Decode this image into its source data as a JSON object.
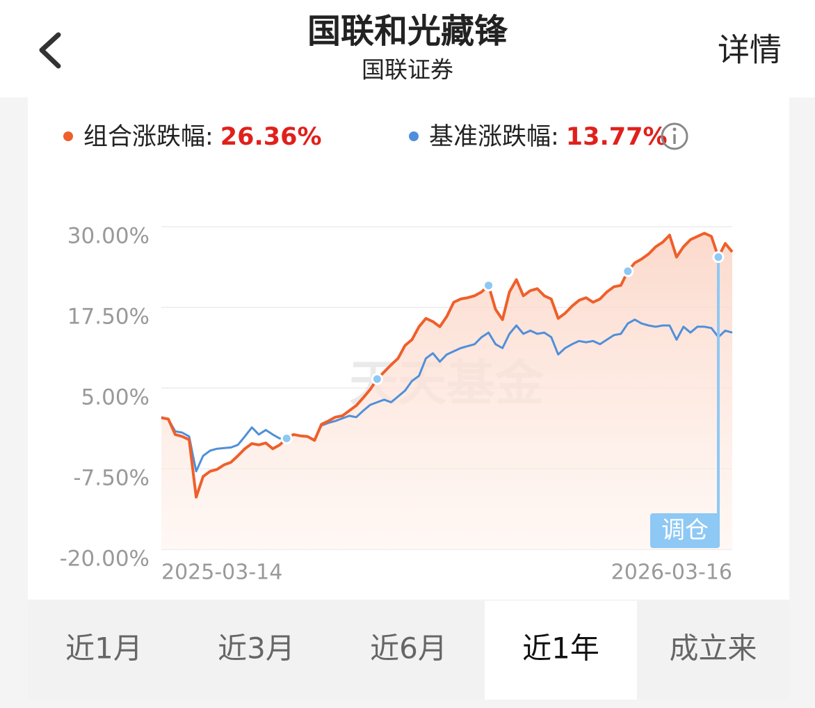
{
  "header": {
    "title": "国联和光藏锋",
    "subtitle": "国联证券",
    "action": "详情"
  },
  "summary": [
    {
      "label": "组合涨跌幅:",
      "value": "26.36%"
    },
    {
      "label": "基准涨跌幅:",
      "value": "13.77%"
    }
  ],
  "chart_data": {
    "type": "line",
    "categories": [
      "2025-03-14",
      null,
      null,
      null,
      null,
      null,
      null,
      null,
      null,
      null,
      null,
      null,
      null,
      null,
      null,
      null,
      null,
      null,
      null,
      null,
      null,
      null,
      null,
      null,
      null,
      null,
      null,
      null,
      null,
      null,
      null,
      null,
      null,
      null,
      null,
      null,
      null,
      null,
      null,
      null,
      null,
      null,
      null,
      null,
      null,
      null,
      null,
      null,
      null,
      null,
      null,
      null,
      null,
      null,
      null,
      null,
      null,
      null,
      null,
      null,
      null,
      null,
      null,
      null,
      null,
      null,
      null,
      null,
      null,
      null,
      null,
      null,
      null,
      null,
      null,
      null,
      null,
      null,
      null,
      null,
      null,
      null,
      "2026-03-16"
    ],
    "series": [
      {
        "color": "#ef5f2a",
        "area": true,
        "values": [
          0.4,
          0.2,
          -2.2,
          -2.5,
          -3.0,
          -11.9,
          -8.7,
          -7.9,
          -7.6,
          -6.9,
          -6.5,
          -5.5,
          -4.4,
          -3.6,
          -3.8,
          -3.5,
          -4.4,
          -3.8,
          -2.8,
          -2.2,
          -2.4,
          -2.5,
          -3.1,
          -0.6,
          -0.1,
          0.5,
          0.7,
          1.5,
          2.3,
          3.5,
          4.8,
          6.4,
          7.5,
          8.6,
          9.6,
          11.6,
          12.5,
          14.5,
          15.8,
          15.3,
          14.5,
          16.1,
          18.3,
          18.8,
          19.0,
          19.3,
          19.9,
          20.9,
          17.2,
          15.6,
          19.9,
          21.8,
          19.3,
          20.1,
          20.4,
          19.3,
          18.8,
          15.8,
          16.6,
          17.7,
          18.6,
          19.0,
          18.3,
          18.8,
          19.9,
          20.7,
          20.9,
          23.1,
          24.4,
          25.0,
          25.8,
          26.9,
          27.6,
          28.7,
          25.3,
          26.9,
          28.0,
          28.5,
          29.0,
          28.5,
          25.3,
          27.4,
          26.1
        ]
      },
      {
        "color": "#4f8fda",
        "values": [
          0.5,
          0.2,
          -1.7,
          -1.9,
          -2.5,
          -7.9,
          -5.5,
          -4.7,
          -4.4,
          -4.3,
          -4.2,
          -3.8,
          -2.5,
          -1.1,
          -2.2,
          -1.5,
          -2.2,
          -2.8,
          -2.8,
          -2.2,
          -2.4,
          -2.5,
          -3.0,
          -0.8,
          -0.4,
          -0.1,
          0.3,
          0.7,
          0.5,
          1.5,
          2.4,
          2.8,
          3.2,
          2.8,
          3.7,
          4.6,
          6.1,
          6.9,
          9.6,
          10.4,
          9.1,
          10.2,
          10.7,
          11.2,
          11.5,
          11.8,
          12.9,
          13.6,
          11.8,
          11.2,
          13.4,
          14.7,
          13.4,
          13.9,
          13.4,
          13.6,
          12.9,
          10.2,
          11.2,
          11.8,
          12.3,
          12.1,
          12.3,
          11.8,
          12.5,
          13.2,
          13.4,
          15.0,
          15.6,
          15.0,
          14.7,
          14.5,
          14.7,
          14.7,
          12.5,
          14.5,
          13.6,
          14.5,
          14.5,
          14.3,
          12.9,
          13.9,
          13.6
        ]
      }
    ],
    "rebalance": {
      "label": "调仓",
      "color": "#8ec8f4",
      "indices": [
        18,
        31,
        47,
        67,
        80
      ]
    },
    "watermark": "天天基金",
    "ylim": [
      -20,
      30
    ],
    "yticks": [
      {
        "value": -20,
        "label": "-20.00%"
      },
      {
        "value": -7.5,
        "label": "-7.50%"
      },
      {
        "value": 5,
        "label": "5.00%"
      },
      {
        "value": 17.5,
        "label": "17.50%"
      },
      {
        "value": 30,
        "label": "30.00%"
      }
    ],
    "grid": true
  },
  "tabs": {
    "items": [
      "近1月",
      "近3月",
      "近6月",
      "近1年",
      "成立来"
    ],
    "selected": 3
  }
}
